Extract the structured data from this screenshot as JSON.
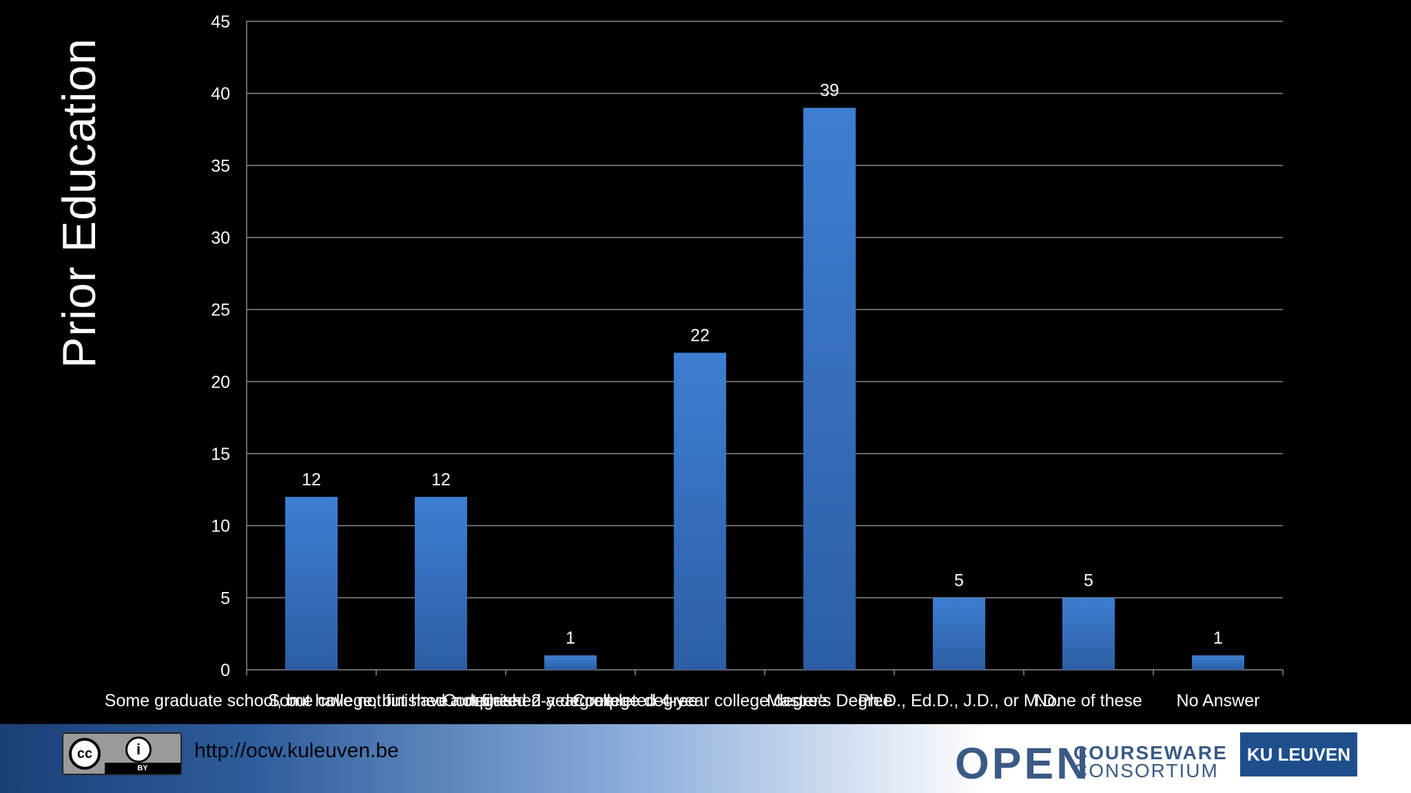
{
  "slide": {
    "title": "Prior Education"
  },
  "chart_data": {
    "type": "bar",
    "title": "",
    "xlabel": "",
    "ylabel": "",
    "categories": [
      "Some graduate school, but have not finished a degree",
      "Some college, but have not finished a degree",
      "Completed 2-year college degree",
      "Completed 4-year college degree",
      "Master's Degree",
      "Ph.D., Ed.D., J.D., or M.D.",
      "None of these",
      "No Answer"
    ],
    "values": [
      12,
      12,
      1,
      22,
      39,
      5,
      5,
      1
    ],
    "ylim": [
      0,
      45
    ],
    "yticks": [
      0,
      5,
      10,
      15,
      20,
      25,
      30,
      35,
      40,
      45
    ],
    "grid": true,
    "legend": "none",
    "bar_color": "#3b7bcf"
  },
  "footer": {
    "url": "http://ocw.kuleuven.be",
    "cc_text": "cc",
    "by_icon": "i",
    "by_text": "BY",
    "ocw_big": "OPEN",
    "ocw_small_1": "COURSEWARE",
    "ocw_small_2": "CONSORTIUM",
    "ku_logo": "KU LEUVEN"
  }
}
